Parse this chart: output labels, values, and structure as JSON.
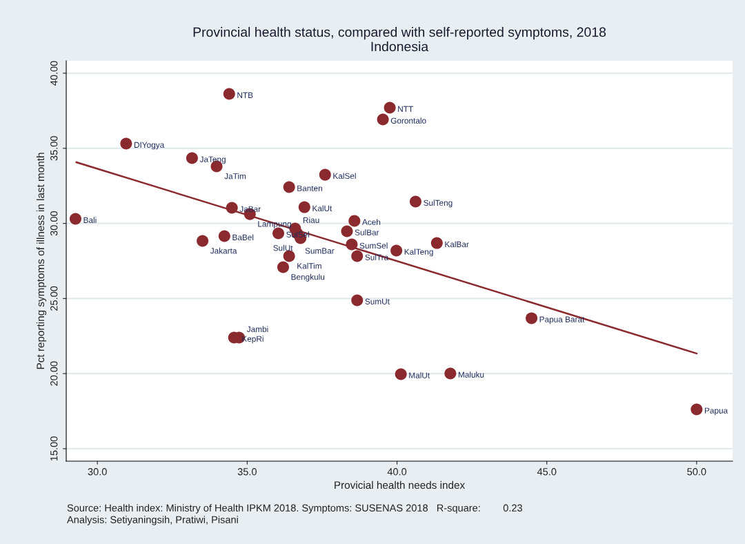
{
  "chart_data": {
    "type": "scatter",
    "title": "Provincial health status, compared with self-reported symptoms, 2018",
    "subtitle": "Indonesia",
    "xlabel": "Provicial health needs index",
    "ylabel": "Pct reporting symptoms of illness in last month",
    "xlim": [
      28.96,
      51.2
    ],
    "ylim": [
      14.17,
      40.83
    ],
    "xticks": [
      {
        "value": 30,
        "label": "30.0"
      },
      {
        "value": 35,
        "label": "35.0"
      },
      {
        "value": 40,
        "label": "40.0"
      },
      {
        "value": 45,
        "label": "45.0"
      },
      {
        "value": 50,
        "label": "50.0"
      }
    ],
    "yticks": [
      {
        "value": 15,
        "label": "15.00"
      },
      {
        "value": 20,
        "label": "20.00"
      },
      {
        "value": 25,
        "label": "25.00"
      },
      {
        "value": 30,
        "label": "30.00"
      },
      {
        "value": 35,
        "label": "35.00"
      },
      {
        "value": 40,
        "label": "40.00"
      }
    ],
    "grid": "y",
    "marker": "circle",
    "series": [
      {
        "color": "#8b2a2e",
        "x": [
          34.4,
          39.76,
          39.53,
          30.96,
          33.16,
          33.98,
          37.6,
          36.4,
          34.49,
          35.09,
          36.91,
          40.62,
          38.58,
          29.27,
          34.24,
          33.51,
          36.04,
          36.6,
          36.67,
          36.78,
          38.33,
          38.49,
          38.67,
          39.98,
          41.33,
          36.4,
          36.2,
          38.67,
          44.49,
          40.13,
          41.78,
          50.0,
          34.56,
          34.73
        ],
        "values": [
          38.62,
          37.7,
          36.92,
          35.31,
          34.35,
          33.8,
          33.24,
          32.42,
          31.04,
          30.62,
          31.08,
          31.45,
          30.17,
          30.3,
          29.15,
          28.83,
          29.34,
          29.66,
          29.34,
          29.02,
          29.48,
          28.6,
          27.82,
          28.19,
          28.69,
          27.82,
          27.09,
          24.88,
          23.69,
          19.96,
          20.01,
          17.62,
          22.4,
          22.4
        ]
      },
      {
        "type": "line",
        "color": "#8b2a2e",
        "marker": "none",
        "line_style": "solid",
        "x": [
          29.3,
          50.0
        ],
        "values": [
          34.07,
          21.34
        ]
      }
    ],
    "annotations": [
      {
        "text": "NTB",
        "x": 34.4,
        "y": 38.62
      },
      {
        "text": "NTT",
        "x": 39.76,
        "y": 37.7
      },
      {
        "text": "Gorontalo",
        "x": 39.53,
        "y": 36.92
      },
      {
        "text": "DIYogya",
        "x": 30.96,
        "y": 35.31
      },
      {
        "text": "JaTeng",
        "x": 33.16,
        "y": 34.35
      },
      {
        "text": "JaTim",
        "x": 33.98,
        "y": 33.8
      },
      {
        "text": "KalSel",
        "x": 37.6,
        "y": 33.24
      },
      {
        "text": "Banten",
        "x": 36.4,
        "y": 32.42
      },
      {
        "text": "JaBar",
        "x": 34.49,
        "y": 31.04
      },
      {
        "text": "Lampung",
        "x": 35.09,
        "y": 30.62
      },
      {
        "text": "KalUt",
        "x": 36.91,
        "y": 31.08
      },
      {
        "text": "SulTeng",
        "x": 40.62,
        "y": 31.45
      },
      {
        "text": "Aceh",
        "x": 38.58,
        "y": 30.17
      },
      {
        "text": "Bali",
        "x": 29.27,
        "y": 30.3
      },
      {
        "text": "BaBel",
        "x": 34.24,
        "y": 29.15
      },
      {
        "text": "Jakarta",
        "x": 33.51,
        "y": 28.83
      },
      {
        "text": "SulSel",
        "x": 36.04,
        "y": 29.34
      },
      {
        "text": "Riau",
        "x": 36.6,
        "y": 29.66
      },
      {
        "text": "SumBar",
        "x": 36.67,
        "y": 29.34
      },
      {
        "text": "SulUt",
        "x": 36.78,
        "y": 29.02
      },
      {
        "text": "SulBar",
        "x": 38.33,
        "y": 29.48
      },
      {
        "text": "SumSel",
        "x": 38.49,
        "y": 28.6
      },
      {
        "text": "SulTra",
        "x": 38.67,
        "y": 27.82
      },
      {
        "text": "KalTeng",
        "x": 39.98,
        "y": 28.19
      },
      {
        "text": "KalBar",
        "x": 41.33,
        "y": 28.69
      },
      {
        "text": "KalTim",
        "x": 36.4,
        "y": 27.82
      },
      {
        "text": "Bengkulu",
        "x": 36.2,
        "y": 27.09
      },
      {
        "text": "SumUt",
        "x": 38.67,
        "y": 24.88
      },
      {
        "text": "Papua Barat",
        "x": 44.49,
        "y": 23.69
      },
      {
        "text": "MalUt",
        "x": 40.13,
        "y": 19.96
      },
      {
        "text": "Maluku",
        "x": 41.78,
        "y": 20.01
      },
      {
        "text": "Papua",
        "x": 50.0,
        "y": 17.62
      },
      {
        "text": "KepRi",
        "x": 34.56,
        "y": 22.4
      },
      {
        "text": "Jambi",
        "x": 34.73,
        "y": 22.4
      },
      "Source: Health index: Ministry of Health IPKM 2018. Symptoms: SUSENAS 2018   R-square:        0.23",
      "Analysis: Setiyaningsih, Pratiwi, Pisani"
    ]
  }
}
